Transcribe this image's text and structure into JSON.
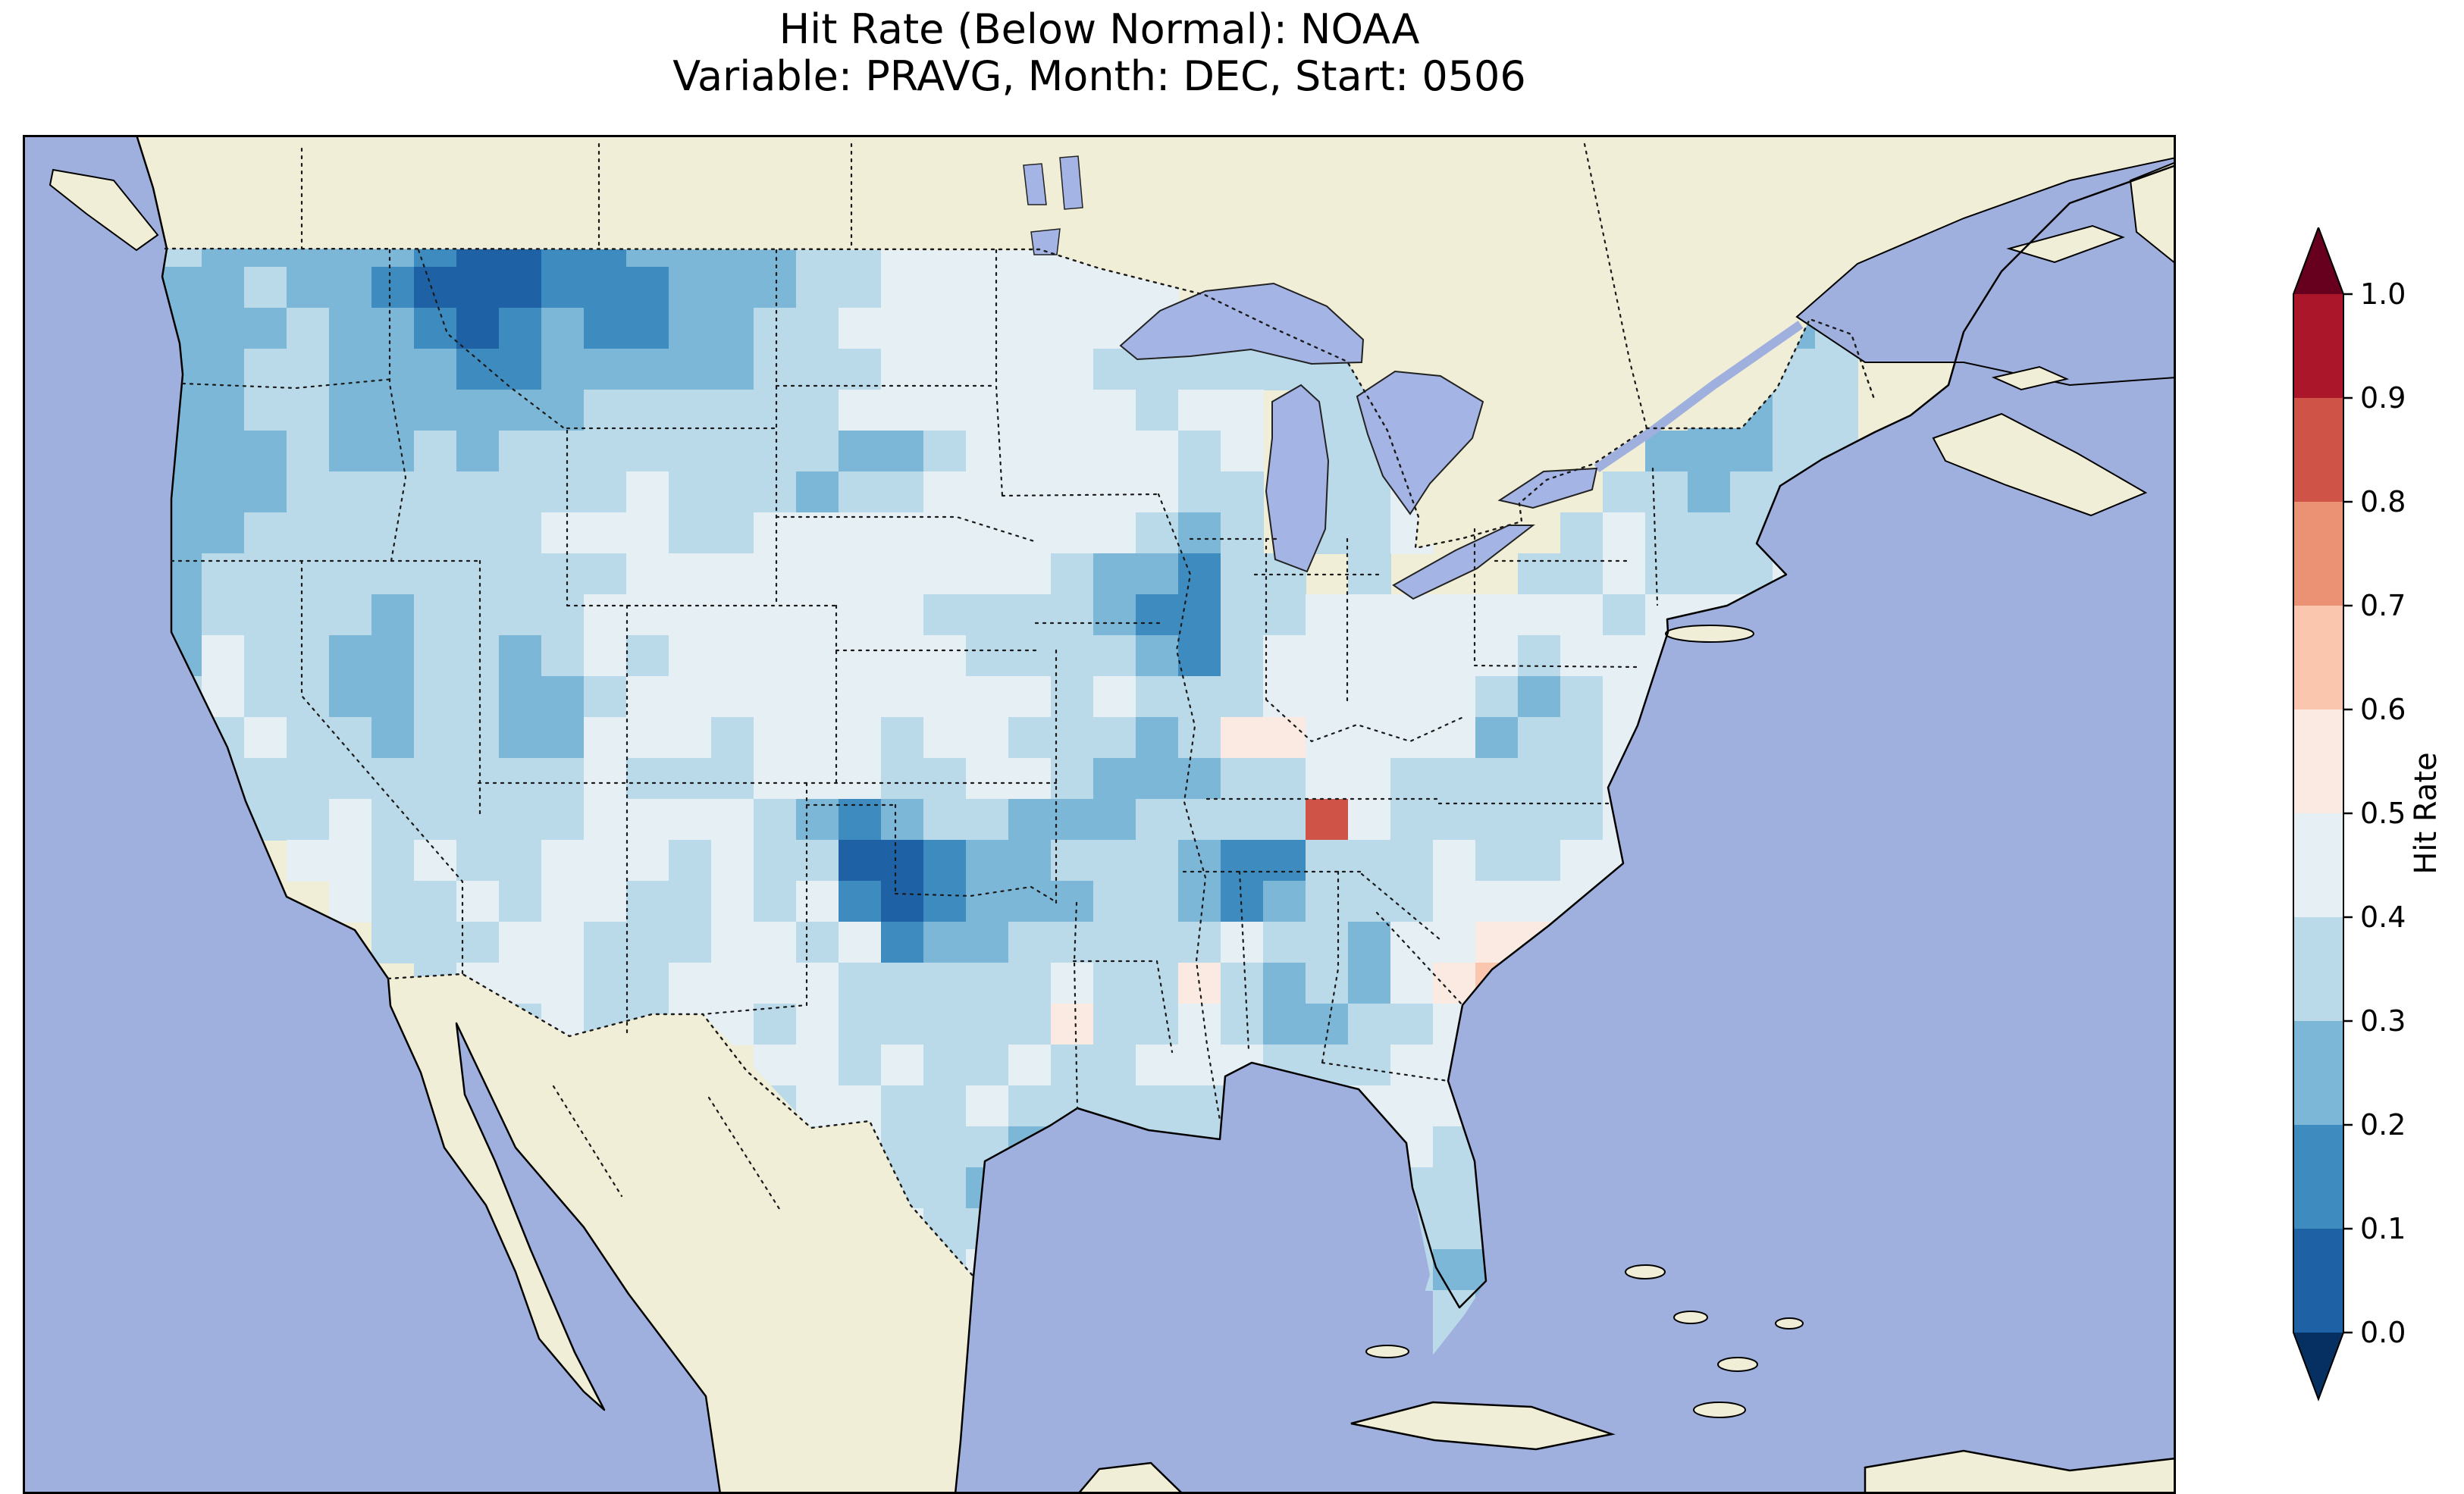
{
  "figure": {
    "title_line1": "Hit Rate (Below Normal): NOAA",
    "title_line2": "Variable: PRAVG, Month: DEC, Start: 0506"
  },
  "chart_data": {
    "type": "heatmap",
    "title": "Hit Rate (Below Normal): NOAA",
    "subtitle": "Variable: PRAVG, Month: DEC, Start: 0506",
    "variable": "PRAVG",
    "month": "DEC",
    "start": "0506",
    "source_label": "NOAA",
    "colorbar": {
      "label": "Hit Rate",
      "ticks_top_to_bottom": [
        "1.0",
        "0.9",
        "0.8",
        "0.7",
        "0.6",
        "0.5",
        "0.4",
        "0.3",
        "0.2",
        "0.1",
        "0.0"
      ],
      "bin_edges": [
        0.0,
        0.1,
        0.2,
        0.3,
        0.4,
        0.5,
        0.6,
        0.7,
        0.8,
        0.9,
        1.0
      ],
      "bin_colors": [
        "#1f61a5",
        "#3d8bbf",
        "#7cb7d7",
        "#bad9e9",
        "#e6eff4",
        "#faeae1",
        "#fac7ae",
        "#ec9274",
        "#d05347",
        "#ab162a"
      ],
      "under_color": "#053061",
      "over_color": "#67001f",
      "extend": "both",
      "orientation": "vertical",
      "position": "right"
    },
    "map_colors": {
      "ocean": "#a0b0de",
      "land": "#f0eed6",
      "lake": "#a4b4e4",
      "coastline": "#000000",
      "border_line": "#1a1a1a"
    },
    "grid": {
      "description": "Approximate gridded hit-rate field over the contiguous US read from the figure. Each character is one cell, west-to-east per row, rows north-to-south. '.' = no data (outside US). Digit d = hit rate bin [d/10,(d+1)/10); e.g. 2 = 0.2-0.3.",
      "ncols": 40,
      "nrows": 28,
      "rows": [
        "322222100112222334444444................",
        "223221000111222334444444................",
        "222322101211223344444444..............23",
        "22332221122222333444443333333........233",
        "22332222223333334444444344.33.......2233",
        "22232232333333332234444434.333.....22233",
        "22233333333433323344444433.334....332333",
        "22333333344433444444444323.334...343333.",
        "233333333334444444444322133.3...3343334.",
        "23333233334444444433332113344444443444..",
        "2433223323434444444333321344444434444...",
        "3433223322344444444443433344444323444...",
        ".343323322444344434433323554444233444...",
        ".33333333343334443344322233443333344....",
        "..334333334444321233222333384333334.....",
        "...44343344434330012233321133343344.....",
        "....4334344334341012223321233344444.....",
        ".....3334433344341223333343324455.......",
        "......344433444433333433532324565.......",
        "......333433443433333533432233454.......",
        "......333.....4434334334443334444.......",
        "..............3443343333333444444.......",
        "...............3433323333....43.........",
        "................33323........333........",
        ".................433.........333........",
        "..................34.........322........",
        "..............................32........",
        "..............................3........."
      ]
    }
  }
}
